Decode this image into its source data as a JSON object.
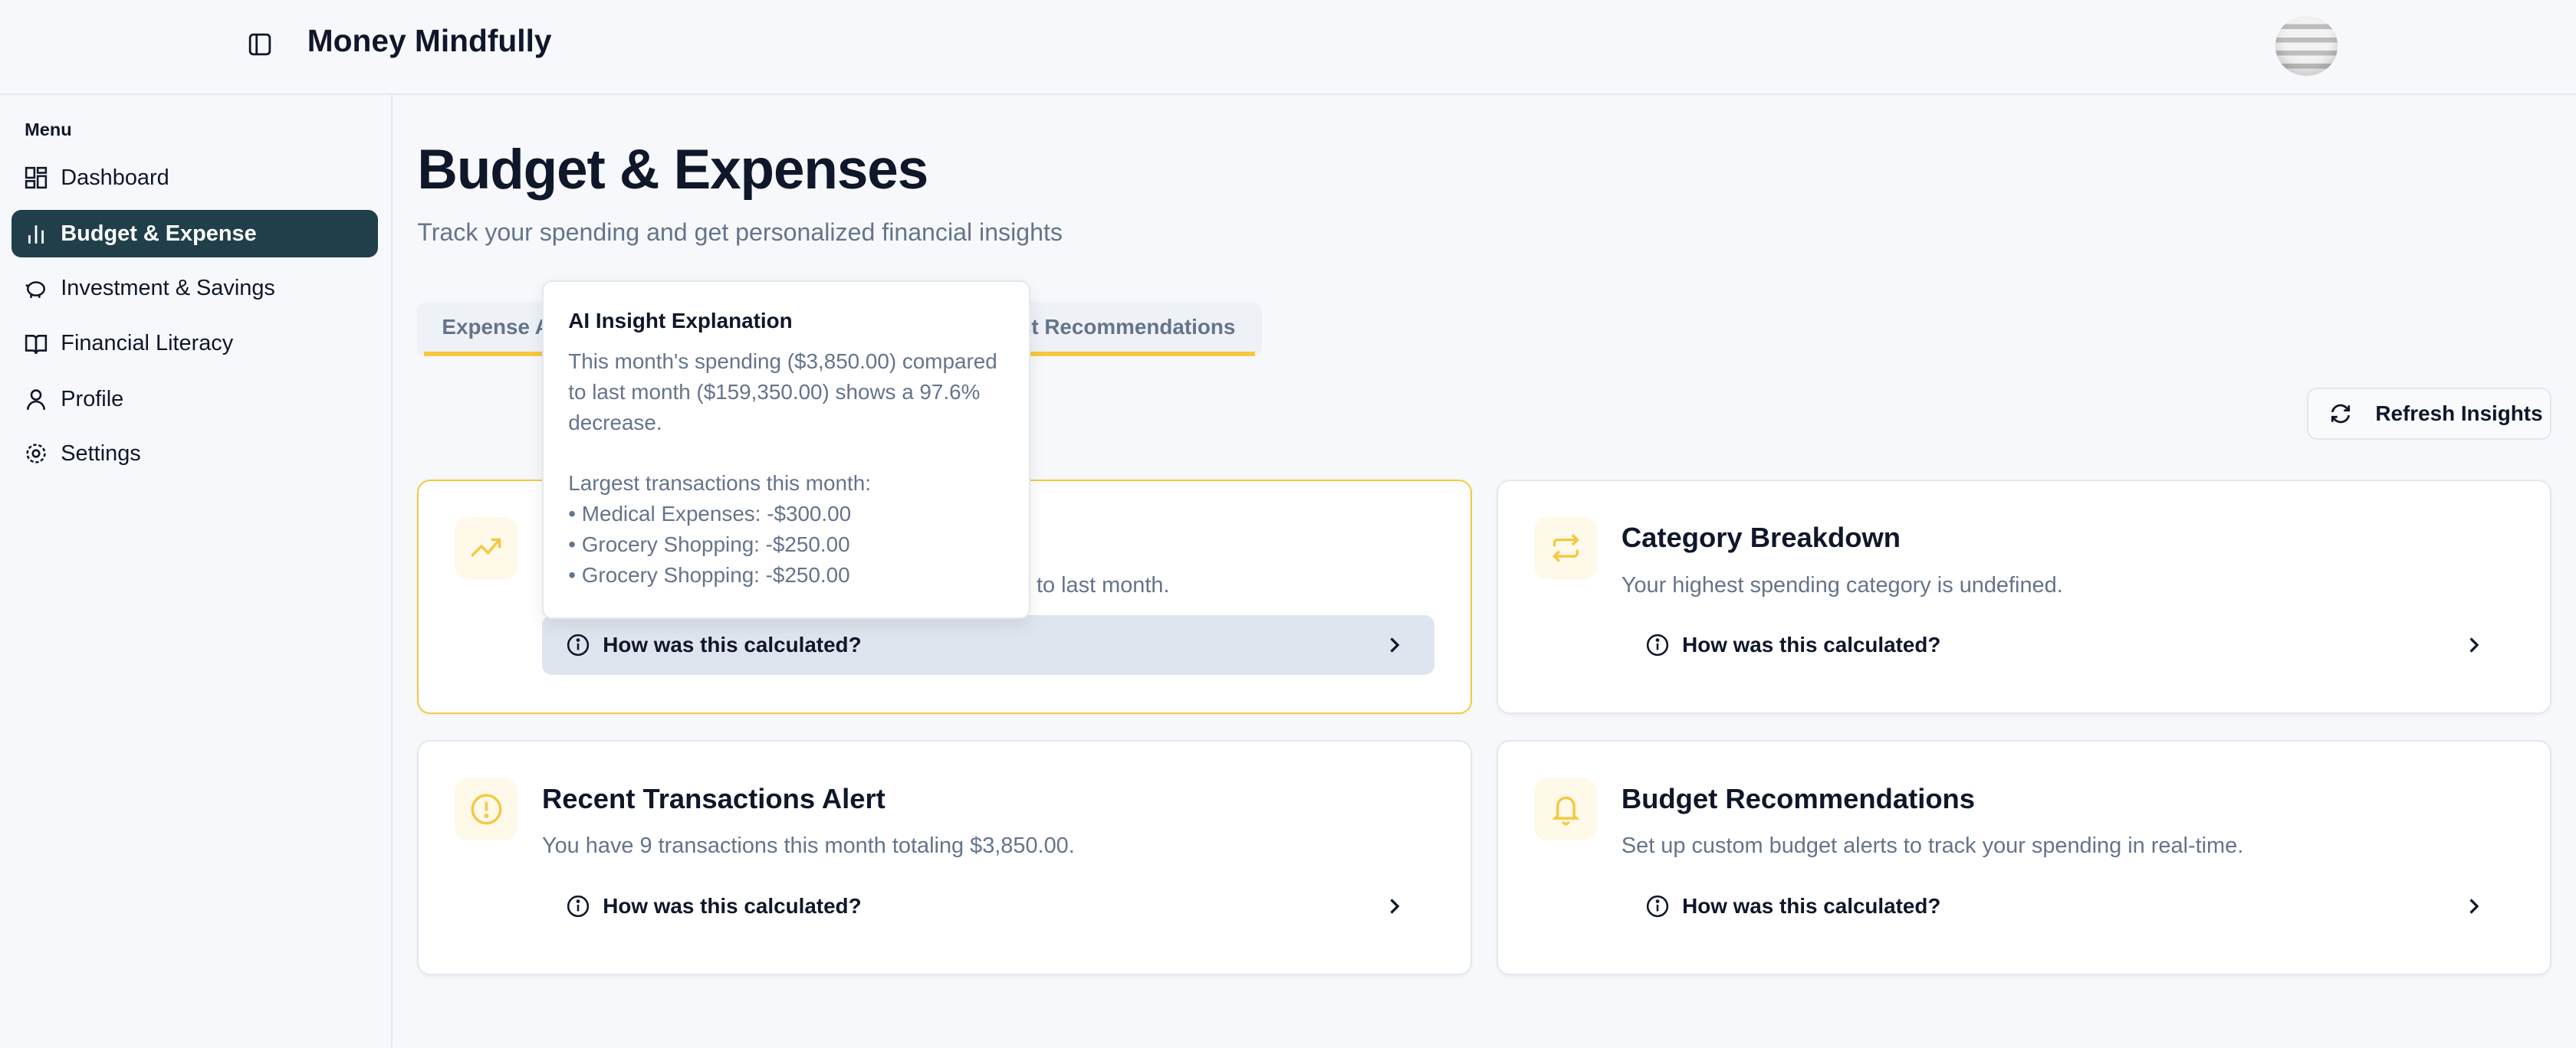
{
  "header": {
    "app_title": "Money Mindfully",
    "toggle_icon": "sidebar-toggle-icon",
    "avatar_icon": "user-avatar"
  },
  "sidebar": {
    "menu_label": "Menu",
    "items": [
      {
        "label": "Dashboard",
        "icon": "dashboard-icon"
      },
      {
        "label": "Budget & Expense",
        "icon": "bar-chart-icon",
        "active": true
      },
      {
        "label": "Investment & Savings",
        "icon": "piggy-bank-icon"
      },
      {
        "label": "Financial Literacy",
        "icon": "book-icon"
      },
      {
        "label": "Profile",
        "icon": "user-icon"
      },
      {
        "label": "Settings",
        "icon": "gear-icon"
      }
    ]
  },
  "main": {
    "title": "Budget & Expenses",
    "subtitle": "Track your spending and get personalized financial insights",
    "tabs": [
      {
        "label": "Expense A"
      },
      {
        "label": "ct Recommendations"
      }
    ],
    "refresh_label": "Refresh Insights",
    "cards": [
      {
        "title": "",
        "description": "to last month.",
        "calc_label": "How was this calculated?",
        "icon": "trending-up-icon"
      },
      {
        "title": "Category Breakdown",
        "description": "Your highest spending category is undefined.",
        "calc_label": "How was this calculated?",
        "icon": "repeat-icon"
      },
      {
        "title": "Recent Transactions Alert",
        "description": "You have 9 transactions this month totaling $3,850.00.",
        "calc_label": "How was this calculated?",
        "icon": "alert-circle-icon"
      },
      {
        "title": "Budget Recommendations",
        "description": "Set up custom budget alerts to track your spending in real-time.",
        "calc_label": "How was this calculated?",
        "icon": "bell-icon"
      }
    ]
  },
  "tooltip": {
    "title": "AI Insight Explanation",
    "lines": [
      "This month's spending ($3,850.00) compared",
      "to last month ($159,350.00) shows a 97.6%",
      "decrease.",
      "",
      "Largest transactions this month:",
      "• Medical Expenses: -$300.00",
      "• Grocery Shopping: -$250.00",
      "• Grocery Shopping: -$250.00"
    ]
  },
  "colors": {
    "accent": "#f5c842",
    "active_nav": "#213f4a",
    "muted_text": "#64748b"
  }
}
